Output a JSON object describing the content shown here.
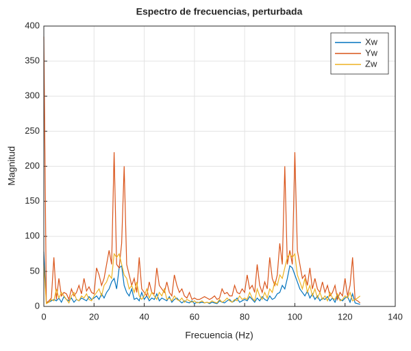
{
  "chart_data": {
    "type": "line",
    "title": "Espectro de frecuencias, perturbada",
    "xlabel": "Frecuencia (Hz)",
    "ylabel": "Magnitud",
    "x": [
      0,
      1,
      2,
      3,
      4,
      5,
      6,
      7,
      8,
      9,
      10,
      11,
      12,
      13,
      14,
      15,
      16,
      17,
      18,
      19,
      20,
      21,
      22,
      23,
      24,
      25,
      26,
      27,
      28,
      29,
      30,
      31,
      32,
      33,
      34,
      35,
      36,
      37,
      38,
      39,
      40,
      41,
      42,
      43,
      44,
      45,
      46,
      47,
      48,
      49,
      50,
      51,
      52,
      53,
      54,
      55,
      56,
      57,
      58,
      59,
      60,
      61,
      62,
      63,
      64,
      65,
      66,
      67,
      68,
      69,
      70,
      71,
      72,
      73,
      74,
      75,
      76,
      77,
      78,
      79,
      80,
      81,
      82,
      83,
      84,
      85,
      86,
      87,
      88,
      89,
      90,
      91,
      92,
      93,
      94,
      95,
      96,
      97,
      98,
      99,
      100,
      101,
      102,
      103,
      104,
      105,
      106,
      107,
      108,
      109,
      110,
      111,
      112,
      113,
      114,
      115,
      116,
      117,
      118,
      119,
      120,
      121,
      122,
      123,
      124,
      125,
      126
    ],
    "series": [
      {
        "name": "Xw",
        "color": "#0072BD",
        "values": [
          78,
          5,
          6,
          8,
          10,
          8,
          12,
          6,
          14,
          10,
          8,
          12,
          6,
          10,
          8,
          12,
          10,
          8,
          14,
          10,
          12,
          15,
          10,
          18,
          12,
          20,
          25,
          35,
          40,
          25,
          55,
          58,
          30,
          20,
          15,
          25,
          10,
          12,
          8,
          20,
          10,
          15,
          8,
          12,
          10,
          18,
          8,
          12,
          10,
          8,
          14,
          6,
          10,
          12,
          8,
          5,
          8,
          6,
          5,
          8,
          4,
          6,
          5,
          6,
          5,
          6,
          4,
          6,
          5,
          4,
          8,
          6,
          5,
          8,
          10,
          6,
          8,
          12,
          6,
          8,
          10,
          8,
          14,
          10,
          6,
          12,
          8,
          14,
          10,
          8,
          15,
          10,
          12,
          18,
          20,
          30,
          25,
          40,
          58,
          55,
          45,
          35,
          25,
          20,
          15,
          22,
          12,
          18,
          10,
          15,
          8,
          12,
          10,
          14,
          8,
          12,
          6,
          15,
          10,
          8,
          12,
          14,
          6,
          18,
          5,
          4,
          3
        ]
      },
      {
        "name": "Yw",
        "color": "#D95319",
        "values": [
          385,
          5,
          8,
          12,
          70,
          10,
          40,
          15,
          20,
          18,
          10,
          25,
          15,
          20,
          30,
          18,
          40,
          22,
          28,
          20,
          18,
          55,
          45,
          30,
          40,
          60,
          80,
          60,
          220,
          60,
          55,
          90,
          200,
          60,
          45,
          30,
          40,
          20,
          70,
          25,
          20,
          15,
          35,
          20,
          18,
          55,
          30,
          25,
          20,
          35,
          20,
          15,
          45,
          30,
          20,
          25,
          15,
          12,
          20,
          10,
          12,
          10,
          10,
          12,
          14,
          12,
          10,
          12,
          15,
          10,
          12,
          25,
          18,
          20,
          15,
          15,
          30,
          20,
          18,
          25,
          20,
          45,
          25,
          30,
          20,
          60,
          30,
          20,
          35,
          25,
          70,
          40,
          30,
          45,
          90,
          60,
          200,
          60,
          80,
          60,
          220,
          80,
          60,
          40,
          45,
          30,
          55,
          25,
          40,
          25,
          20,
          35,
          20,
          30,
          15,
          20,
          30,
          10,
          20,
          15,
          40,
          15,
          30,
          70,
          10,
          8,
          5
        ]
      },
      {
        "name": "Zw",
        "color": "#EDB120",
        "values": [
          60,
          4,
          6,
          10,
          8,
          25,
          12,
          20,
          15,
          10,
          5,
          15,
          20,
          10,
          8,
          15,
          12,
          18,
          10,
          8,
          15,
          20,
          25,
          15,
          30,
          35,
          45,
          40,
          75,
          70,
          75,
          60,
          45,
          40,
          25,
          30,
          20,
          35,
          15,
          10,
          15,
          25,
          12,
          20,
          15,
          10,
          20,
          15,
          25,
          10,
          12,
          8,
          15,
          10,
          8,
          12,
          6,
          10,
          8,
          6,
          8,
          5,
          6,
          8,
          5,
          6,
          5,
          8,
          6,
          5,
          10,
          6,
          8,
          12,
          8,
          6,
          10,
          8,
          15,
          10,
          12,
          10,
          20,
          12,
          8,
          25,
          15,
          10,
          20,
          12,
          25,
          20,
          35,
          30,
          45,
          40,
          55,
          70,
          75,
          70,
          75,
          45,
          35,
          25,
          40,
          20,
          30,
          15,
          25,
          12,
          20,
          10,
          15,
          8,
          20,
          12,
          10,
          18,
          8,
          10,
          15,
          12,
          20,
          8,
          10,
          12,
          15
        ]
      }
    ],
    "xlim": [
      0,
      140
    ],
    "xticks": [
      0,
      20,
      40,
      60,
      80,
      100,
      120,
      140
    ],
    "ylim": [
      0,
      400
    ],
    "yticks": [
      0,
      50,
      100,
      150,
      200,
      250,
      300,
      350,
      400
    ],
    "grid": true,
    "legend": "upper-right"
  }
}
